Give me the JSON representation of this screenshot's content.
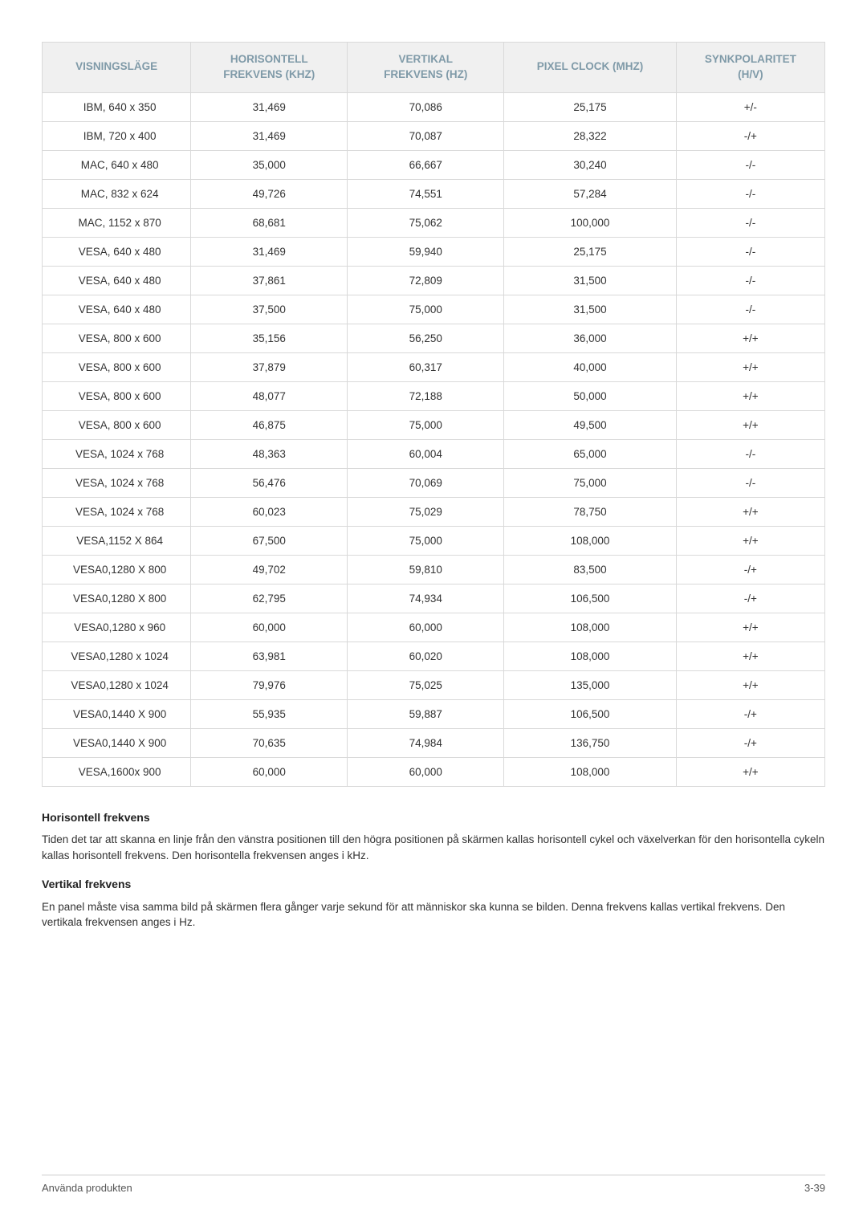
{
  "table": {
    "columns": [
      "VISNINGSLÄGE",
      "HORISONTELL FREKVENS (KHZ)",
      "VERTIKAL FREKVENS (HZ)",
      "PIXEL CLOCK (MHZ)",
      "SYNKPOLARITET (H/V)"
    ],
    "column_widths_pct": [
      19,
      20,
      20,
      22,
      19
    ],
    "header_bg": "#f0f0f0",
    "header_color": "#7f9aa8",
    "border_color": "#d9d9d9",
    "body_fontsize": 13.5,
    "header_fontsize": 13.5,
    "rows": [
      [
        "IBM, 640 x 350",
        "31,469",
        "70,086",
        "25,175",
        "+/-"
      ],
      [
        "IBM, 720 x 400",
        "31,469",
        "70,087",
        "28,322",
        "-/+"
      ],
      [
        "MAC, 640 x 480",
        "35,000",
        "66,667",
        "30,240",
        "-/-"
      ],
      [
        "MAC, 832 x 624",
        "49,726",
        "74,551",
        "57,284",
        "-/-"
      ],
      [
        "MAC, 1152 x 870",
        "68,681",
        "75,062",
        "100,000",
        "-/-"
      ],
      [
        "VESA, 640 x 480",
        "31,469",
        "59,940",
        "25,175",
        "-/-"
      ],
      [
        "VESA, 640 x 480",
        "37,861",
        "72,809",
        "31,500",
        "-/-"
      ],
      [
        "VESA, 640 x 480",
        "37,500",
        "75,000",
        "31,500",
        "-/-"
      ],
      [
        "VESA, 800 x 600",
        "35,156",
        "56,250",
        "36,000",
        "+/+"
      ],
      [
        "VESA, 800 x 600",
        "37,879",
        "60,317",
        "40,000",
        "+/+"
      ],
      [
        "VESA, 800 x 600",
        "48,077",
        "72,188",
        "50,000",
        "+/+"
      ],
      [
        "VESA, 800 x 600",
        "46,875",
        "75,000",
        "49,500",
        "+/+"
      ],
      [
        "VESA, 1024 x 768",
        "48,363",
        "60,004",
        "65,000",
        "-/-"
      ],
      [
        "VESA, 1024 x 768",
        "56,476",
        "70,069",
        "75,000",
        "-/-"
      ],
      [
        "VESA, 1024 x 768",
        "60,023",
        "75,029",
        "78,750",
        "+/+"
      ],
      [
        "VESA,1152 X 864",
        "67,500",
        "75,000",
        "108,000",
        "+/+"
      ],
      [
        "VESA0,1280 X 800",
        "49,702",
        "59,810",
        "83,500",
        "-/+"
      ],
      [
        "VESA0,1280 X 800",
        "62,795",
        "74,934",
        "106,500",
        "-/+"
      ],
      [
        "VESA0,1280 x 960",
        "60,000",
        "60,000",
        "108,000",
        "+/+"
      ],
      [
        "VESA0,1280 x 1024",
        "63,981",
        "60,020",
        "108,000",
        "+/+"
      ],
      [
        "VESA0,1280 x 1024",
        "79,976",
        "75,025",
        "135,000",
        "+/+"
      ],
      [
        "VESA0,1440 X 900",
        "55,935",
        "59,887",
        "106,500",
        "-/+"
      ],
      [
        "VESA0,1440 X 900",
        "70,635",
        "74,984",
        "136,750",
        "-/+"
      ],
      [
        "VESA,1600x 900",
        "60,000",
        "60,000",
        "108,000",
        "+/+"
      ]
    ]
  },
  "sections": {
    "h1": {
      "heading": "Horisontell frekvens",
      "body": "Tiden det tar att skanna en linje från den vänstra positionen till den högra positionen på skärmen kallas horisontell cykel och växelverkan för den horisontella cykeln kallas horisontell frekvens. Den horisontella frekvensen anges i kHz."
    },
    "v1": {
      "heading": "Vertikal frekvens",
      "body": "En panel måste visa samma bild på skärmen flera gånger varje sekund för att människor ska kunna se bilden. Denna frekvens kallas vertikal frekvens. Den vertikala frekvensen anges i Hz."
    }
  },
  "footer": {
    "left": "Använda produkten",
    "right": "3-39"
  },
  "style": {
    "page_bg": "#ffffff",
    "text_color": "#333333",
    "footer_border": "#cccccc"
  }
}
